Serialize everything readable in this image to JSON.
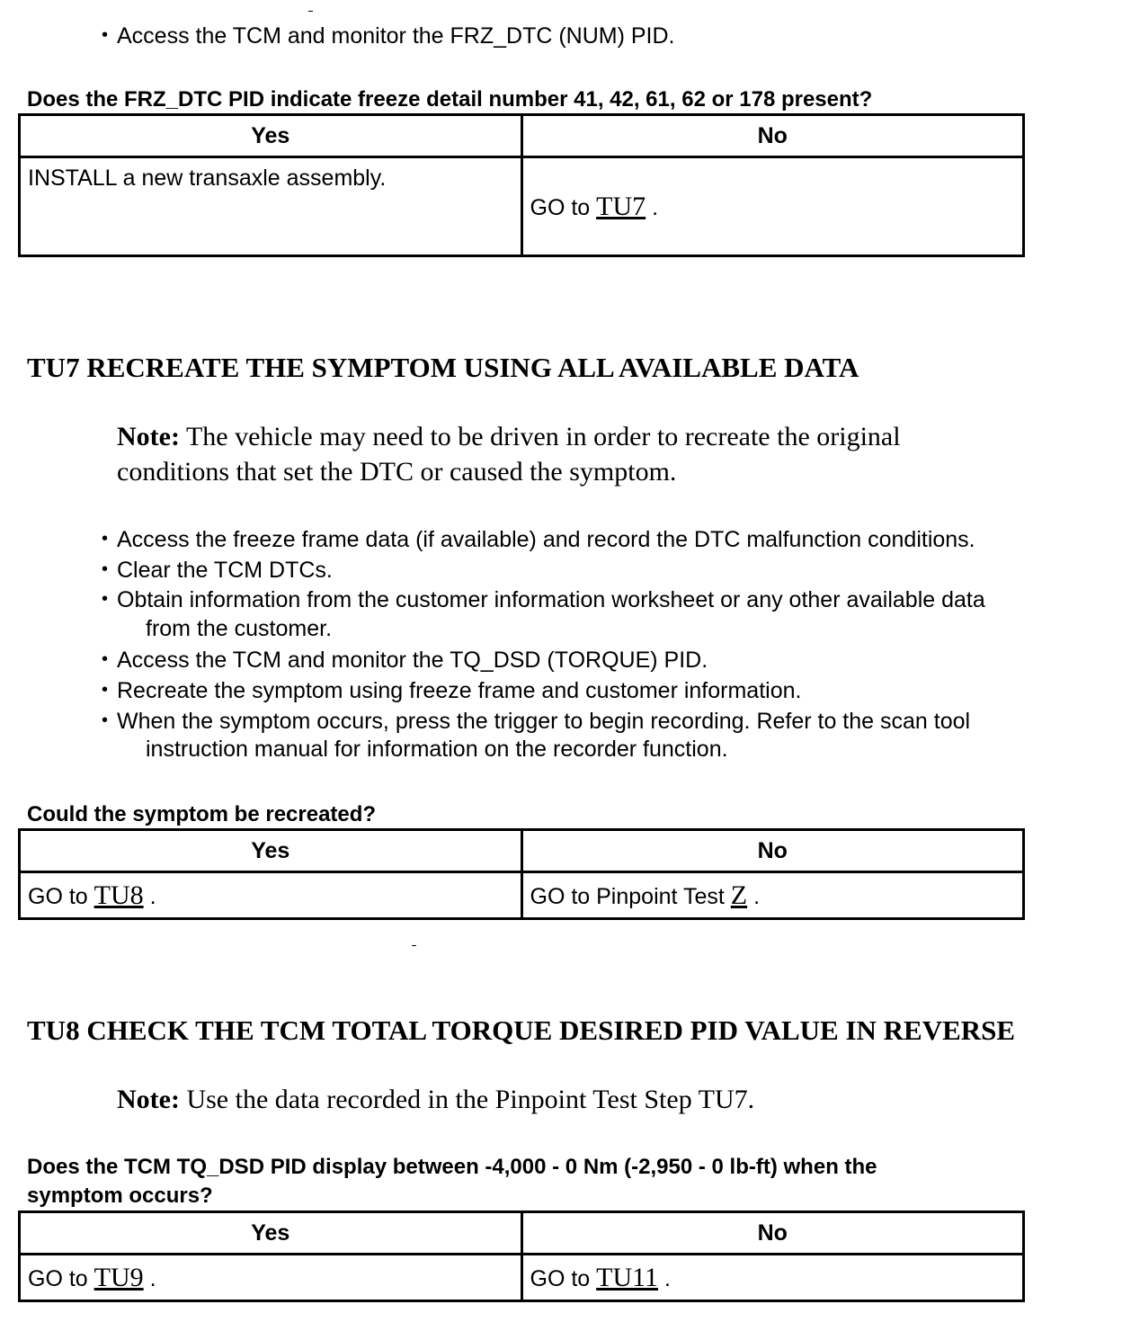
{
  "section1": {
    "bullets": [
      "Access the TCM and monitor the FRZ_DTC (NUM) PID."
    ],
    "question": "Does the FRZ_DTC PID indicate freeze detail number 41, 42, 61, 62 or 178 present?",
    "table": {
      "yes_header": "Yes",
      "no_header": "No",
      "yes_text": "INSTALL a new transaxle assembly.",
      "no_prefix": "GO to",
      "no_link": "TU7",
      "no_suffix": "."
    }
  },
  "tu7": {
    "heading": "TU7 RECREATE THE SYMPTOM USING ALL AVAILABLE DATA",
    "note_label": "Note:",
    "note_line1": "The vehicle may need to be driven in order to recreate the original",
    "note_line2": "conditions that set the DTC or caused the symptom.",
    "bullets": [
      "Access the freeze frame data (if available) and record the DTC malfunction conditions.",
      "Clear the TCM DTCs.",
      "Obtain information from the customer information worksheet or any other available data",
      "Access the TCM and monitor the TQ_DSD (TORQUE) PID.",
      "Recreate the symptom using freeze frame and customer information.",
      "When the symptom occurs, press the trigger to begin recording. Refer to the scan tool"
    ],
    "continuations": [
      "from the customer.",
      "instruction manual for information on the recorder function."
    ],
    "question": "Could the symptom be recreated?",
    "table": {
      "yes_header": "Yes",
      "no_header": "No",
      "yes_prefix": "GO to",
      "yes_link": "TU8",
      "yes_suffix": ".",
      "no_prefix": "GO to Pinpoint Test",
      "no_link": "Z",
      "no_suffix": "."
    }
  },
  "tu8": {
    "heading": "TU8 CHECK THE TCM TOTAL TORQUE DESIRED PID VALUE IN REVERSE",
    "note_label": "Note:",
    "note_text": "Use the data recorded in the Pinpoint Test Step TU7.",
    "question_line1": "Does the TCM TQ_DSD PID display between -4,000 - 0 Nm (-2,950 - 0 lb-ft) when the",
    "question_line2": "symptom occurs?",
    "table": {
      "yes_header": "Yes",
      "no_header": "No",
      "yes_prefix": "GO to",
      "yes_link": "TU9",
      "yes_suffix": ".",
      "no_prefix": "GO to",
      "no_link": "TU11",
      "no_suffix": "."
    }
  }
}
